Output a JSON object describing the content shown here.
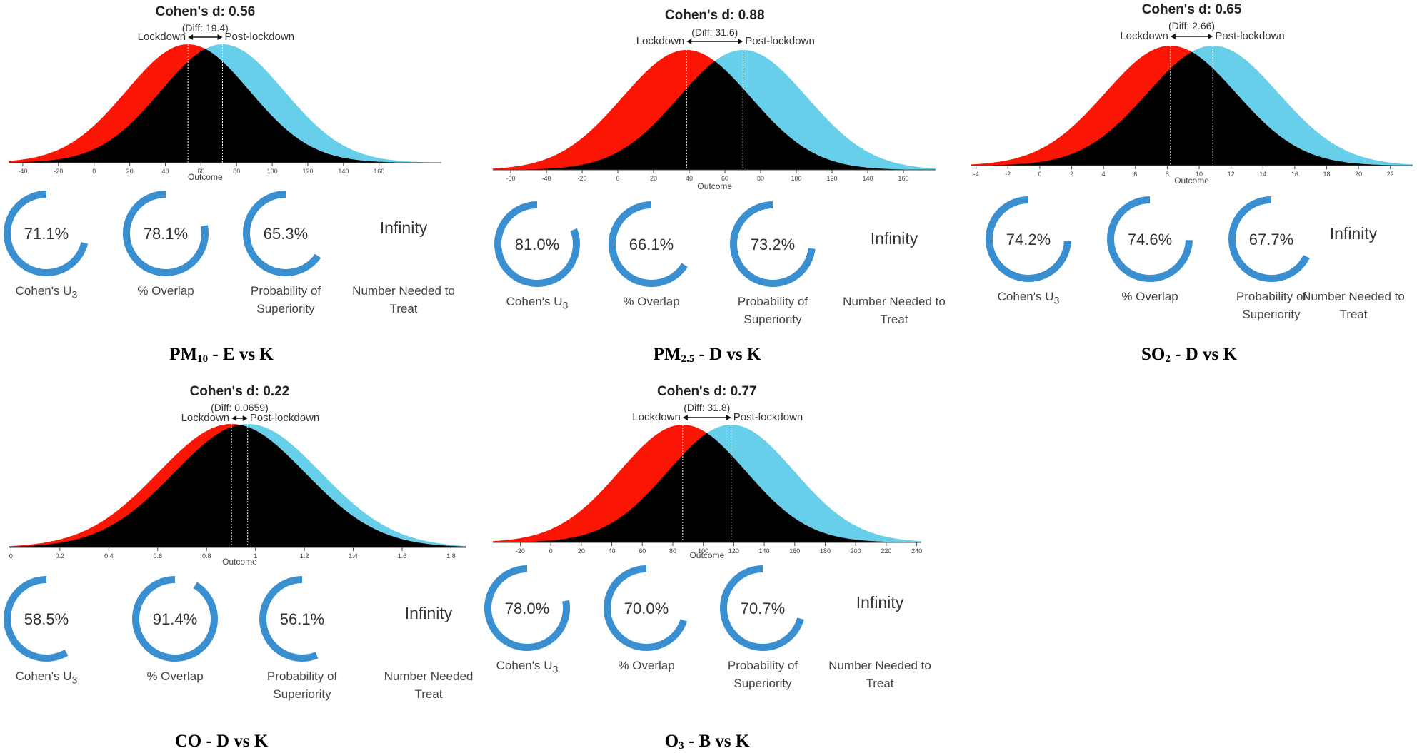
{
  "colors": {
    "lockdown": "#fa1505",
    "post_lockdown": "#68cfeb",
    "overlap": "#000000",
    "ring": "#3a8fd0",
    "axis": "#444444"
  },
  "labels": {
    "group1": "Lockdown",
    "group2": "Post-lockdown",
    "xlabel": "Outcome",
    "u3": "Cohen's U",
    "u3_sub": "3",
    "overlap": "% Overlap",
    "superiority_line1": "Probability of",
    "superiority_line2": "Superiority",
    "nnt_line1": "Number Needed to",
    "nnt_line2": "Treat"
  },
  "panels": [
    {
      "id": "pm10",
      "title": "Cohen's d: 0.56",
      "diff": "(Diff: 19.4)",
      "caption_main": "PM",
      "caption_sub": "10",
      "caption_rest": " - E vs K",
      "u3": "71.1%",
      "overlap": "78.1%",
      "superiority": "65.3%",
      "nnt": "Infinity",
      "nnt_line1": "Number Needed to",
      "ring_fractions": [
        0.711,
        0.781,
        0.653
      ]
    },
    {
      "id": "pm25",
      "title": "Cohen's d: 0.88",
      "diff": "(Diff: 31.6)",
      "caption_main": "PM",
      "caption_sub": "2.5",
      "caption_rest": " - D vs K",
      "u3": "81.0%",
      "overlap": "66.1%",
      "superiority": "73.2%",
      "nnt": "Infinity",
      "nnt_line1": "Number Needed to",
      "ring_fractions": [
        0.81,
        0.661,
        0.732
      ]
    },
    {
      "id": "so2",
      "title": "Cohen's d: 0.65",
      "diff": "(Diff: 2.66)",
      "caption_main": "SO",
      "caption_sub": "2",
      "caption_rest": " - D vs K",
      "u3": "74.2%",
      "overlap": "74.6%",
      "superiority": "67.7%",
      "nnt": "Infinity",
      "nnt_line1": "Number Needed to",
      "ring_fractions": [
        0.742,
        0.746,
        0.677
      ]
    },
    {
      "id": "co",
      "title": "Cohen's d: 0.22",
      "diff": "(Diff: 0.0659)",
      "caption_main": "CO",
      "caption_sub": "",
      "caption_rest": " - D vs K",
      "u3": "58.5%",
      "overlap": "91.4%",
      "superiority": "56.1%",
      "nnt": "Infinity",
      "nnt_line1": "Number Needed",
      "ring_fractions": [
        0.585,
        0.914,
        0.561
      ]
    },
    {
      "id": "o3",
      "title": "Cohen's d: 0.77",
      "diff": "(Diff: 31.8)",
      "caption_main": "O",
      "caption_sub": "3",
      "caption_rest": " - B vs K",
      "u3": "78.0%",
      "overlap": "70.0%",
      "superiority": "70.7%",
      "nnt": "Infinity",
      "nnt_line1": "Number Needed to",
      "ring_fractions": [
        0.78,
        0.7,
        0.707
      ]
    }
  ],
  "chart_data": [
    {
      "type": "area",
      "title": "Cohen's d: 0.56",
      "xlabel": "Outcome",
      "series": [
        {
          "name": "Lockdown",
          "mean": 52.7,
          "sd": 34.6
        },
        {
          "name": "Post-lockdown",
          "mean": 72.1,
          "sd": 34.6
        }
      ],
      "xlim": [
        -48,
        195
      ],
      "ticks": [
        -40,
        -20,
        0,
        20,
        40,
        60,
        80,
        100,
        120,
        140,
        160
      ]
    },
    {
      "type": "area",
      "title": "Cohen's d: 0.88",
      "xlabel": "Outcome",
      "series": [
        {
          "name": "Lockdown",
          "mean": 38.5,
          "sd": 35.9
        },
        {
          "name": "Post-lockdown",
          "mean": 70.1,
          "sd": 35.9
        }
      ],
      "xlim": [
        -70,
        178
      ],
      "ticks": [
        -60,
        -40,
        -20,
        0,
        20,
        40,
        60,
        80,
        100,
        120,
        140,
        160
      ]
    },
    {
      "type": "area",
      "title": "Cohen's d: 0.65",
      "xlabel": "Outcome",
      "series": [
        {
          "name": "Lockdown",
          "mean": 8.2,
          "sd": 4.1
        },
        {
          "name": "Post-lockdown",
          "mean": 10.86,
          "sd": 4.1
        }
      ],
      "xlim": [
        -4.3,
        23.4
      ],
      "ticks": [
        -4,
        -2,
        0,
        2,
        4,
        6,
        8,
        10,
        12,
        14,
        16,
        18,
        20,
        22
      ]
    },
    {
      "type": "area",
      "title": "Cohen's d: 0.22",
      "xlabel": "Outcome",
      "series": [
        {
          "name": "Lockdown",
          "mean": 0.902,
          "sd": 0.3
        },
        {
          "name": "Post-lockdown",
          "mean": 0.968,
          "sd": 0.3
        }
      ],
      "xlim": [
        -0.01,
        1.86
      ],
      "ticks": [
        0.0,
        0.2,
        0.4,
        0.6,
        0.8,
        1.0,
        1.2,
        1.4,
        1.6,
        1.8
      ]
    },
    {
      "type": "area",
      "title": "Cohen's d: 0.77",
      "xlabel": "Outcome",
      "series": [
        {
          "name": "Lockdown",
          "mean": 86.5,
          "sd": 41.3
        },
        {
          "name": "Post-lockdown",
          "mean": 118.3,
          "sd": 41.3
        }
      ],
      "xlim": [
        -38,
        243
      ],
      "ticks": [
        -20,
        0,
        20,
        40,
        60,
        80,
        100,
        120,
        140,
        160,
        180,
        200,
        220,
        240
      ]
    }
  ]
}
